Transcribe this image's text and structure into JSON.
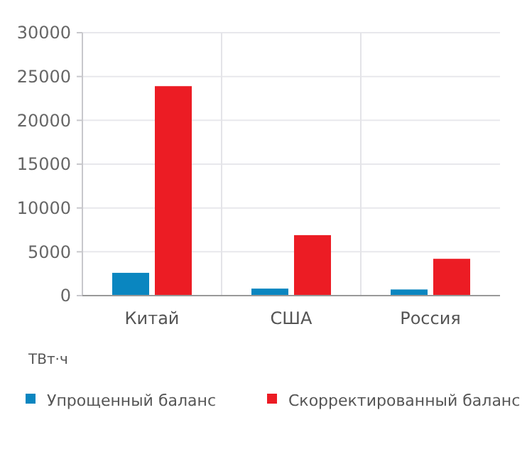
{
  "chart_data": {
    "type": "bar",
    "ylabel": "ТВт·ч",
    "categories": [
      "Китай",
      "США",
      "Россия"
    ],
    "series": [
      {
        "name": "Упрощенный баланс",
        "color": "#0a86c0",
        "values": [
          2600,
          800,
          700
        ]
      },
      {
        "name": "Скорректированный баланс",
        "color": "#ec1c24",
        "values": [
          23900,
          6900,
          4200
        ]
      }
    ],
    "ylim": [
      0,
      30000
    ],
    "yticks": [
      0,
      5000,
      10000,
      15000,
      20000,
      25000,
      30000
    ],
    "grid": true,
    "legend": "bottom"
  }
}
